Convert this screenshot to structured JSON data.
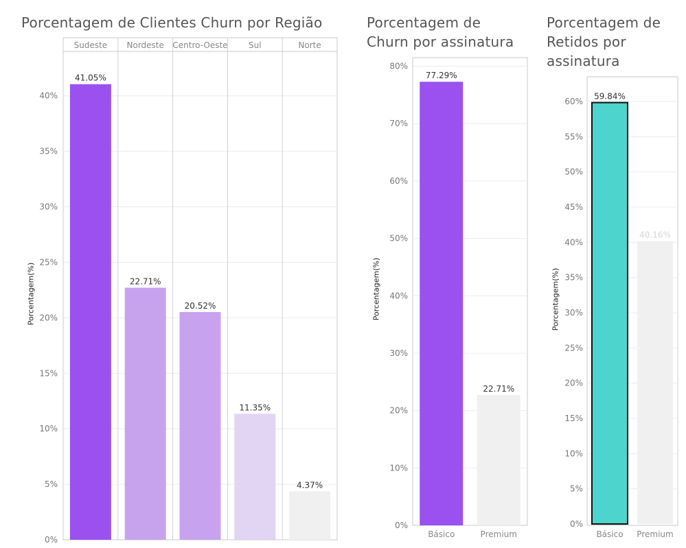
{
  "chart_data": [
    {
      "type": "bar",
      "title": "Porcentagem de Clientes Churn por Região",
      "ylabel": "Porcentagem(%)",
      "xlabel": "",
      "categories": [
        "Sudeste",
        "Nordeste",
        "Centro-Oeste",
        "Sul",
        "Norte"
      ],
      "values": [
        41.05,
        22.71,
        20.52,
        11.35,
        4.37
      ],
      "data_labels": [
        "41.05%",
        "22.71%",
        "20.52%",
        "11.35%",
        "4.37%"
      ],
      "colors": [
        "#9b51f0",
        "#c7a3ee",
        "#c7a3ee",
        "#e2d4f3",
        "#f0f0f0"
      ],
      "yticks": [
        "0%",
        "5%",
        "10%",
        "15%",
        "20%",
        "25%",
        "30%",
        "35%",
        "40%"
      ],
      "ylim": [
        0,
        44
      ],
      "grid": true,
      "category_axis_position": "top"
    },
    {
      "type": "bar",
      "title": "Porcentagem de Churn por assinatura",
      "ylabel": "Porcentagem(%)",
      "xlabel": "",
      "categories": [
        "Básico",
        "Premium"
      ],
      "values": [
        77.29,
        22.71
      ],
      "data_labels": [
        "77.29%",
        "22.71%"
      ],
      "colors": [
        "#9b51f0",
        "#f0f0f0"
      ],
      "yticks": [
        "0%",
        "10%",
        "20%",
        "30%",
        "40%",
        "50%",
        "60%",
        "70%",
        "80%"
      ],
      "ylim": [
        0,
        81.5
      ],
      "grid": true,
      "category_axis_position": "bottom"
    },
    {
      "type": "bar",
      "title": "Porcentagem de Retidos por assinatura",
      "ylabel": "Porcentagem(%)",
      "xlabel": "",
      "categories": [
        "Básico",
        "Premium"
      ],
      "values": [
        59.84,
        40.16
      ],
      "data_labels": [
        "59.84%",
        "40.16%"
      ],
      "colors": [
        "#4dd4cc",
        "#f0f0f0"
      ],
      "highlighted": "Básico",
      "yticks": [
        "0%",
        "5%",
        "10%",
        "15%",
        "20%",
        "25%",
        "30%",
        "35%",
        "40%",
        "45%",
        "50%",
        "55%",
        "60%"
      ],
      "ylim": [
        0,
        63.5
      ],
      "grid": true,
      "category_axis_position": "bottom"
    }
  ]
}
